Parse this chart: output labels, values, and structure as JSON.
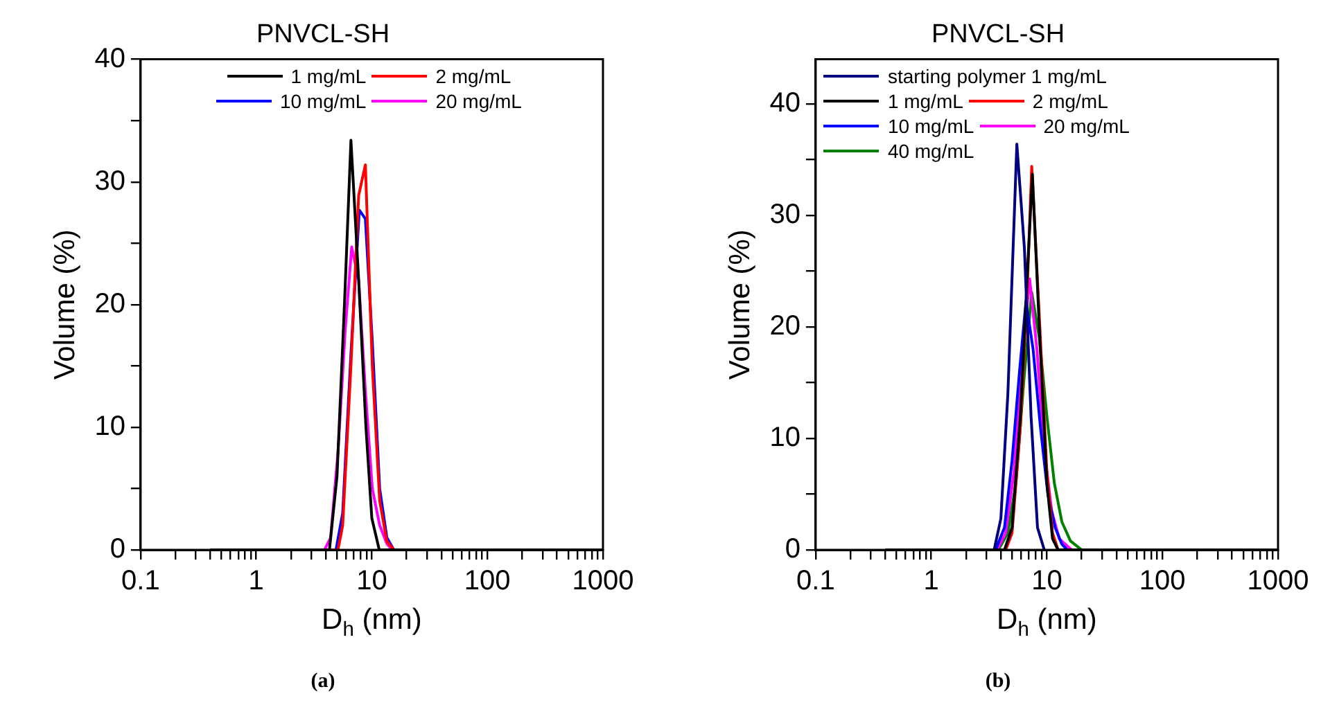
{
  "chart_data": [
    {
      "type": "line",
      "title": "PNVCL-SH",
      "xlabel": "D$_{h}$ (nm)",
      "ylabel": "Volume (%)",
      "log": "x",
      "grid": false,
      "legend": "top",
      "line_style": "solid",
      "xlim": [
        0.1,
        1000
      ],
      "ylim": [
        0,
        40
      ],
      "xticks": [
        0.1,
        {
          "value": 0.2,
          "label": null
        },
        {
          "value": 0.3,
          "label": null
        },
        {
          "value": 0.4,
          "label": null
        },
        {
          "value": 0.5,
          "label": null
        },
        {
          "value": 0.6,
          "label": null
        },
        {
          "value": 0.7,
          "label": null
        },
        {
          "value": 0.8,
          "label": null
        },
        {
          "value": 0.9,
          "label": null
        },
        1,
        {
          "value": 2,
          "label": null
        },
        {
          "value": 3,
          "label": null
        },
        {
          "value": 4,
          "label": null
        },
        {
          "value": 5,
          "label": null
        },
        {
          "value": 6,
          "label": null
        },
        {
          "value": 7,
          "label": null
        },
        {
          "value": 8,
          "label": null
        },
        {
          "value": 9,
          "label": null
        },
        10,
        {
          "value": 20,
          "label": null
        },
        {
          "value": 30,
          "label": null
        },
        {
          "value": 40,
          "label": null
        },
        {
          "value": 50,
          "label": null
        },
        {
          "value": 60,
          "label": null
        },
        {
          "value": 70,
          "label": null
        },
        {
          "value": 80,
          "label": null
        },
        {
          "value": 90,
          "label": null
        },
        100,
        {
          "value": 200,
          "label": null
        },
        {
          "value": 300,
          "label": null
        },
        {
          "value": 400,
          "label": null
        },
        {
          "value": 500,
          "label": null
        },
        {
          "value": 600,
          "label": null
        },
        {
          "value": 700,
          "label": null
        },
        {
          "value": 800,
          "label": null
        },
        {
          "value": 900,
          "label": null
        },
        1000
      ],
      "yticks": [
        0,
        {
          "value": 5,
          "label": null
        },
        10,
        {
          "value": 15,
          "label": null
        },
        20,
        {
          "value": 25,
          "label": null
        },
        30,
        {
          "value": 35,
          "label": null
        },
        40
      ],
      "annotations": [
        "(a)"
      ],
      "series": [
        {
          "name": "1 mg/mL",
          "color": "#000000",
          "x": [
            0.4,
            4.3,
            5.0,
            5.8,
            6.6,
            7.7,
            8.9,
            10.0,
            11.6,
            1000
          ],
          "values": [
            0,
            0,
            6,
            20,
            33.4,
            22,
            10,
            2.6,
            0,
            0
          ]
        },
        {
          "name": "2 mg/mL",
          "color": "#ff0000",
          "x": [
            0.4,
            5.1,
            5.6,
            6.6,
            7.7,
            8.8,
            10.1,
            11.7,
            13.5,
            15.5,
            1000
          ],
          "values": [
            0,
            0,
            2,
            15,
            28.9,
            31.4,
            15,
            4,
            0.7,
            0,
            0
          ]
        },
        {
          "name": "10 mg/mL",
          "color": "#0000ff",
          "x": [
            0.4,
            4.9,
            5.6,
            6.6,
            7.8,
            8.8,
            10.1,
            11.7,
            13.5,
            15.5,
            1000
          ],
          "values": [
            0,
            0,
            3,
            16,
            27.7,
            27,
            17,
            5,
            1,
            0,
            0
          ]
        },
        {
          "name": "20 mg/mL",
          "color": "#ff00ff",
          "x": [
            0.4,
            3.9,
            4.4,
            5.1,
            5.9,
            6.7,
            7.7,
            8.8,
            10.1,
            11.7,
            13.5,
            15,
            1000
          ],
          "values": [
            0,
            0,
            1,
            8,
            18,
            24.7,
            22,
            13,
            5,
            2,
            0.5,
            0,
            0
          ]
        }
      ]
    },
    {
      "type": "line",
      "title": "PNVCL-SH",
      "xlabel": "D$_{h}$ (nm)",
      "ylabel": "Volume (%)",
      "log": "x",
      "grid": false,
      "legend": "top left",
      "line_style": "solid",
      "xlim": [
        0.1,
        1000
      ],
      "ylim": [
        0,
        44
      ],
      "xticks": [
        0.1,
        {
          "value": 0.2,
          "label": null
        },
        {
          "value": 0.3,
          "label": null
        },
        {
          "value": 0.4,
          "label": null
        },
        {
          "value": 0.5,
          "label": null
        },
        {
          "value": 0.6,
          "label": null
        },
        {
          "value": 0.7,
          "label": null
        },
        {
          "value": 0.8,
          "label": null
        },
        {
          "value": 0.9,
          "label": null
        },
        1,
        {
          "value": 2,
          "label": null
        },
        {
          "value": 3,
          "label": null
        },
        {
          "value": 4,
          "label": null
        },
        {
          "value": 5,
          "label": null
        },
        {
          "value": 6,
          "label": null
        },
        {
          "value": 7,
          "label": null
        },
        {
          "value": 8,
          "label": null
        },
        {
          "value": 9,
          "label": null
        },
        10,
        {
          "value": 20,
          "label": null
        },
        {
          "value": 30,
          "label": null
        },
        {
          "value": 40,
          "label": null
        },
        {
          "value": 50,
          "label": null
        },
        {
          "value": 60,
          "label": null
        },
        {
          "value": 70,
          "label": null
        },
        {
          "value": 80,
          "label": null
        },
        {
          "value": 90,
          "label": null
        },
        100,
        {
          "value": 200,
          "label": null
        },
        {
          "value": 300,
          "label": null
        },
        {
          "value": 400,
          "label": null
        },
        {
          "value": 500,
          "label": null
        },
        {
          "value": 600,
          "label": null
        },
        {
          "value": 700,
          "label": null
        },
        {
          "value": 800,
          "label": null
        },
        {
          "value": 900,
          "label": null
        },
        1000
      ],
      "yticks": [
        0,
        {
          "value": 5,
          "label": null
        },
        10,
        {
          "value": 15,
          "label": null
        },
        20,
        {
          "value": 25,
          "label": null
        },
        30,
        {
          "value": 35,
          "label": null
        },
        40
      ],
      "annotations": [
        "(b)"
      ],
      "series": [
        {
          "name": "starting polymer 1 mg/mL",
          "color": "#000080",
          "x": [
            3.5,
            4.0,
            4.6,
            5.5,
            6.4,
            7.3,
            8.3,
            9.5
          ],
          "values": [
            0,
            2.8,
            14,
            36.4,
            27,
            12,
            2,
            0
          ]
        },
        {
          "name": "1 mg/mL",
          "color": "#000000",
          "x": [
            0.4,
            4.3,
            5.0,
            5.9,
            6.8,
            7.5,
            8.6,
            10,
            11.2,
            12.5,
            1000
          ],
          "values": [
            0,
            0,
            2,
            12,
            25,
            33.7,
            20,
            6,
            1,
            0,
            0
          ]
        },
        {
          "name": "2 mg/mL",
          "color": "#ff0000",
          "x": [
            0.4,
            4.4,
            5.0,
            5.9,
            6.8,
            7.4,
            8.6,
            10,
            11.2,
            12.5,
            1000
          ],
          "values": [
            0,
            0,
            1.5,
            11,
            24,
            34.4,
            21,
            7,
            1.5,
            0,
            0
          ]
        },
        {
          "name": "10 mg/mL",
          "color": "#0000ff",
          "x": [
            0.4,
            3.6,
            4.3,
            5.0,
            5.8,
            6.6,
            7.6,
            8.8,
            10.2,
            11.8,
            13.5,
            15,
            1000
          ],
          "values": [
            0,
            0,
            2,
            8,
            16,
            22.3,
            18,
            11,
            5,
            2,
            0.5,
            0,
            0
          ]
        },
        {
          "name": "20 mg/mL",
          "color": "#ff00ff",
          "x": [
            0.4,
            3.7,
            4.4,
            5.2,
            6.1,
            7.1,
            8.2,
            9.5,
            11,
            12.8,
            16.4,
            1000
          ],
          "values": [
            0,
            0,
            1.5,
            7,
            17,
            24.3,
            18,
            9,
            3.5,
            1,
            0,
            0
          ]
        },
        {
          "name": "40 mg/mL",
          "color": "#008000",
          "x": [
            0.4,
            3.8,
            4.6,
            5.4,
            6.3,
            7.4,
            8.6,
            10,
            11.6,
            13.5,
            16,
            20,
            1000
          ],
          "values": [
            0,
            0,
            1.5,
            6,
            15,
            23.1,
            19,
            12,
            6,
            2.5,
            0.8,
            0,
            0
          ]
        }
      ]
    }
  ]
}
